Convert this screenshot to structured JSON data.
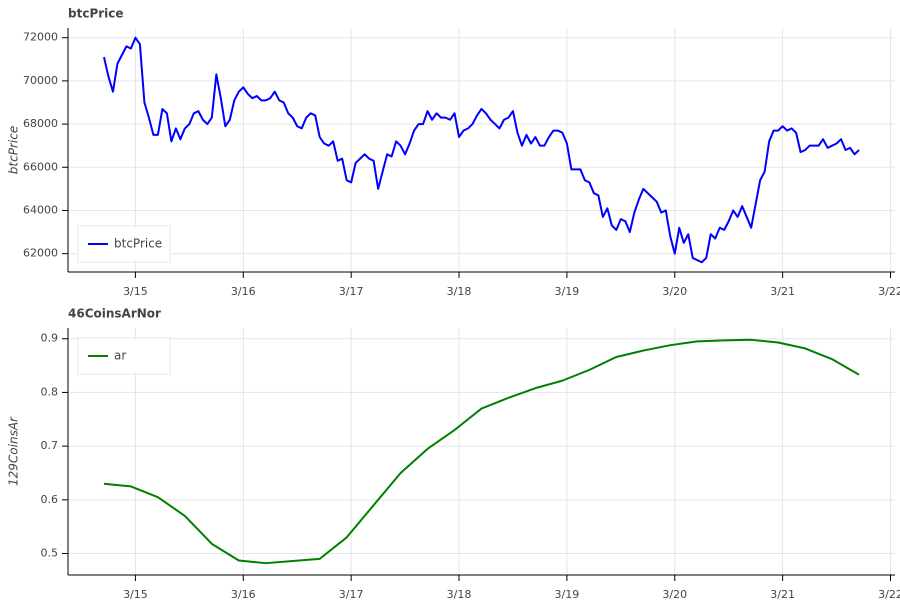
{
  "chart_data": [
    {
      "type": "line",
      "title": "btcPrice",
      "y_label": "btcPrice",
      "legend": "bottom-left",
      "grid": true,
      "x": [
        353,
        354,
        355,
        356,
        357,
        358,
        359,
        360,
        361,
        362,
        363,
        364,
        365,
        366,
        367,
        368,
        369,
        370,
        371,
        372,
        373,
        374,
        375,
        376,
        377,
        378,
        379,
        380,
        381,
        382,
        383,
        384,
        385,
        386,
        387,
        388,
        389,
        390,
        391,
        392,
        393,
        394,
        395,
        396,
        397,
        398,
        399,
        400,
        401,
        402,
        403,
        404,
        405,
        406,
        407,
        408,
        409,
        410,
        411,
        412,
        413,
        414,
        415,
        416,
        417,
        418,
        419,
        420,
        421,
        422,
        423,
        424,
        425,
        426,
        427,
        428,
        429,
        430,
        431,
        432,
        433,
        434,
        435,
        436,
        437,
        438,
        439,
        440,
        441,
        442,
        443,
        444,
        445,
        446,
        447,
        448,
        449,
        450,
        451,
        452,
        453,
        454,
        455,
        456,
        457,
        458,
        459,
        460,
        461,
        462,
        463,
        464,
        465,
        466,
        467,
        468,
        469,
        470,
        471,
        472,
        473,
        474,
        475,
        476,
        477,
        478,
        479,
        480,
        481,
        482,
        483,
        484,
        485,
        486,
        487,
        488,
        489,
        490,
        491,
        492,
        493,
        494,
        495,
        496,
        497,
        498,
        499,
        500,
        501,
        502,
        503,
        504,
        505,
        506,
        507,
        508,
        509,
        510,
        511,
        512,
        513,
        514,
        515,
        516,
        517,
        518,
        519,
        520,
        521
      ],
      "xlim": [
        345,
        529
      ],
      "xticks": [
        {
          "value": 360,
          "label": "3/15"
        },
        {
          "value": 384,
          "label": "3/16"
        },
        {
          "value": 408,
          "label": "3/17"
        },
        {
          "value": 432,
          "label": "3/18"
        },
        {
          "value": 456,
          "label": "3/19"
        },
        {
          "value": 480,
          "label": "3/20"
        },
        {
          "value": 504,
          "label": "3/21"
        },
        {
          "value": 528,
          "label": "3/22"
        }
      ],
      "ylim": [
        61150,
        72450
      ],
      "yticks": [
        62000,
        64000,
        66000,
        68000,
        70000,
        72000
      ],
      "series": [
        {
          "name": "btcPrice",
          "color": "#0000ff",
          "values": [
            71100,
            70200,
            69500,
            70800,
            71200,
            71600,
            71500,
            72000,
            71700,
            69000,
            68300,
            67500,
            67500,
            68700,
            68500,
            67200,
            67800,
            67300,
            67800,
            68000,
            68500,
            68600,
            68200,
            68000,
            68300,
            70300,
            69200,
            67900,
            68200,
            69100,
            69500,
            69700,
            69400,
            69200,
            69300,
            69100,
            69100,
            69200,
            69500,
            69100,
            69000,
            68500,
            68300,
            67900,
            67800,
            68300,
            68500,
            68400,
            67400,
            67100,
            67000,
            67200,
            66300,
            66400,
            65400,
            65300,
            66200,
            66400,
            66600,
            66400,
            66300,
            65000,
            65800,
            66600,
            66500,
            67200,
            67000,
            66600,
            67100,
            67700,
            68000,
            68000,
            68600,
            68200,
            68500,
            68300,
            68300,
            68200,
            68500,
            67400,
            67700,
            67800,
            68000,
            68400,
            68700,
            68500,
            68200,
            68000,
            67800,
            68200,
            68300,
            68600,
            67600,
            67000,
            67500,
            67100,
            67400,
            67000,
            67000,
            67400,
            67700,
            67700,
            67600,
            67100,
            65900,
            65900,
            65900,
            65400,
            65300,
            64800,
            64700,
            63700,
            64100,
            63300,
            63100,
            63600,
            63500,
            63000,
            63900,
            64500,
            65000,
            64800,
            64600,
            64400,
            63900,
            64000,
            62800,
            62000,
            63200,
            62500,
            62900,
            61800,
            61700,
            61600,
            61800,
            62900,
            62700,
            63200,
            63100,
            63500,
            64000,
            63700,
            64200,
            63700,
            63200,
            64300,
            65400,
            65800,
            67200,
            67700,
            67700,
            67900,
            67700,
            67800,
            67600,
            66700,
            66800,
            67000,
            67000,
            67000,
            67300,
            66900,
            67000,
            67100,
            67300,
            66800,
            66900,
            66600,
            66800
          ]
        }
      ]
    },
    {
      "type": "line",
      "title": "46CoinsArNor",
      "y_label": "129CoinsAr",
      "legend": "top-left",
      "grid": true,
      "x": [
        353,
        359,
        365,
        371,
        377,
        383,
        389,
        395,
        401,
        407,
        413,
        419,
        425,
        431,
        437,
        443,
        449,
        455,
        461,
        467,
        473,
        479,
        485,
        491,
        497,
        503,
        509,
        515,
        521
      ],
      "xlim": [
        345,
        529
      ],
      "xticks": [
        {
          "value": 360,
          "label": "3/15"
        },
        {
          "value": 384,
          "label": "3/16"
        },
        {
          "value": 408,
          "label": "3/17"
        },
        {
          "value": 432,
          "label": "3/18"
        },
        {
          "value": 456,
          "label": "3/19"
        },
        {
          "value": 480,
          "label": "3/20"
        },
        {
          "value": 504,
          "label": "3/21"
        },
        {
          "value": 528,
          "label": "3/22"
        }
      ],
      "ylim": [
        0.46,
        0.92
      ],
      "yticks": [
        0.5,
        0.6,
        0.7,
        0.8,
        0.9
      ],
      "series": [
        {
          "name": "ar",
          "color": "#008000",
          "values": [
            0.63,
            0.625,
            0.605,
            0.57,
            0.518,
            0.487,
            0.482,
            0.486,
            0.49,
            0.53,
            0.59,
            0.65,
            0.695,
            0.73,
            0.77,
            0.79,
            0.808,
            0.822,
            0.842,
            0.866,
            0.878,
            0.888,
            0.895,
            0.897,
            0.898,
            0.893,
            0.882,
            0.862,
            0.833
          ]
        }
      ]
    }
  ]
}
